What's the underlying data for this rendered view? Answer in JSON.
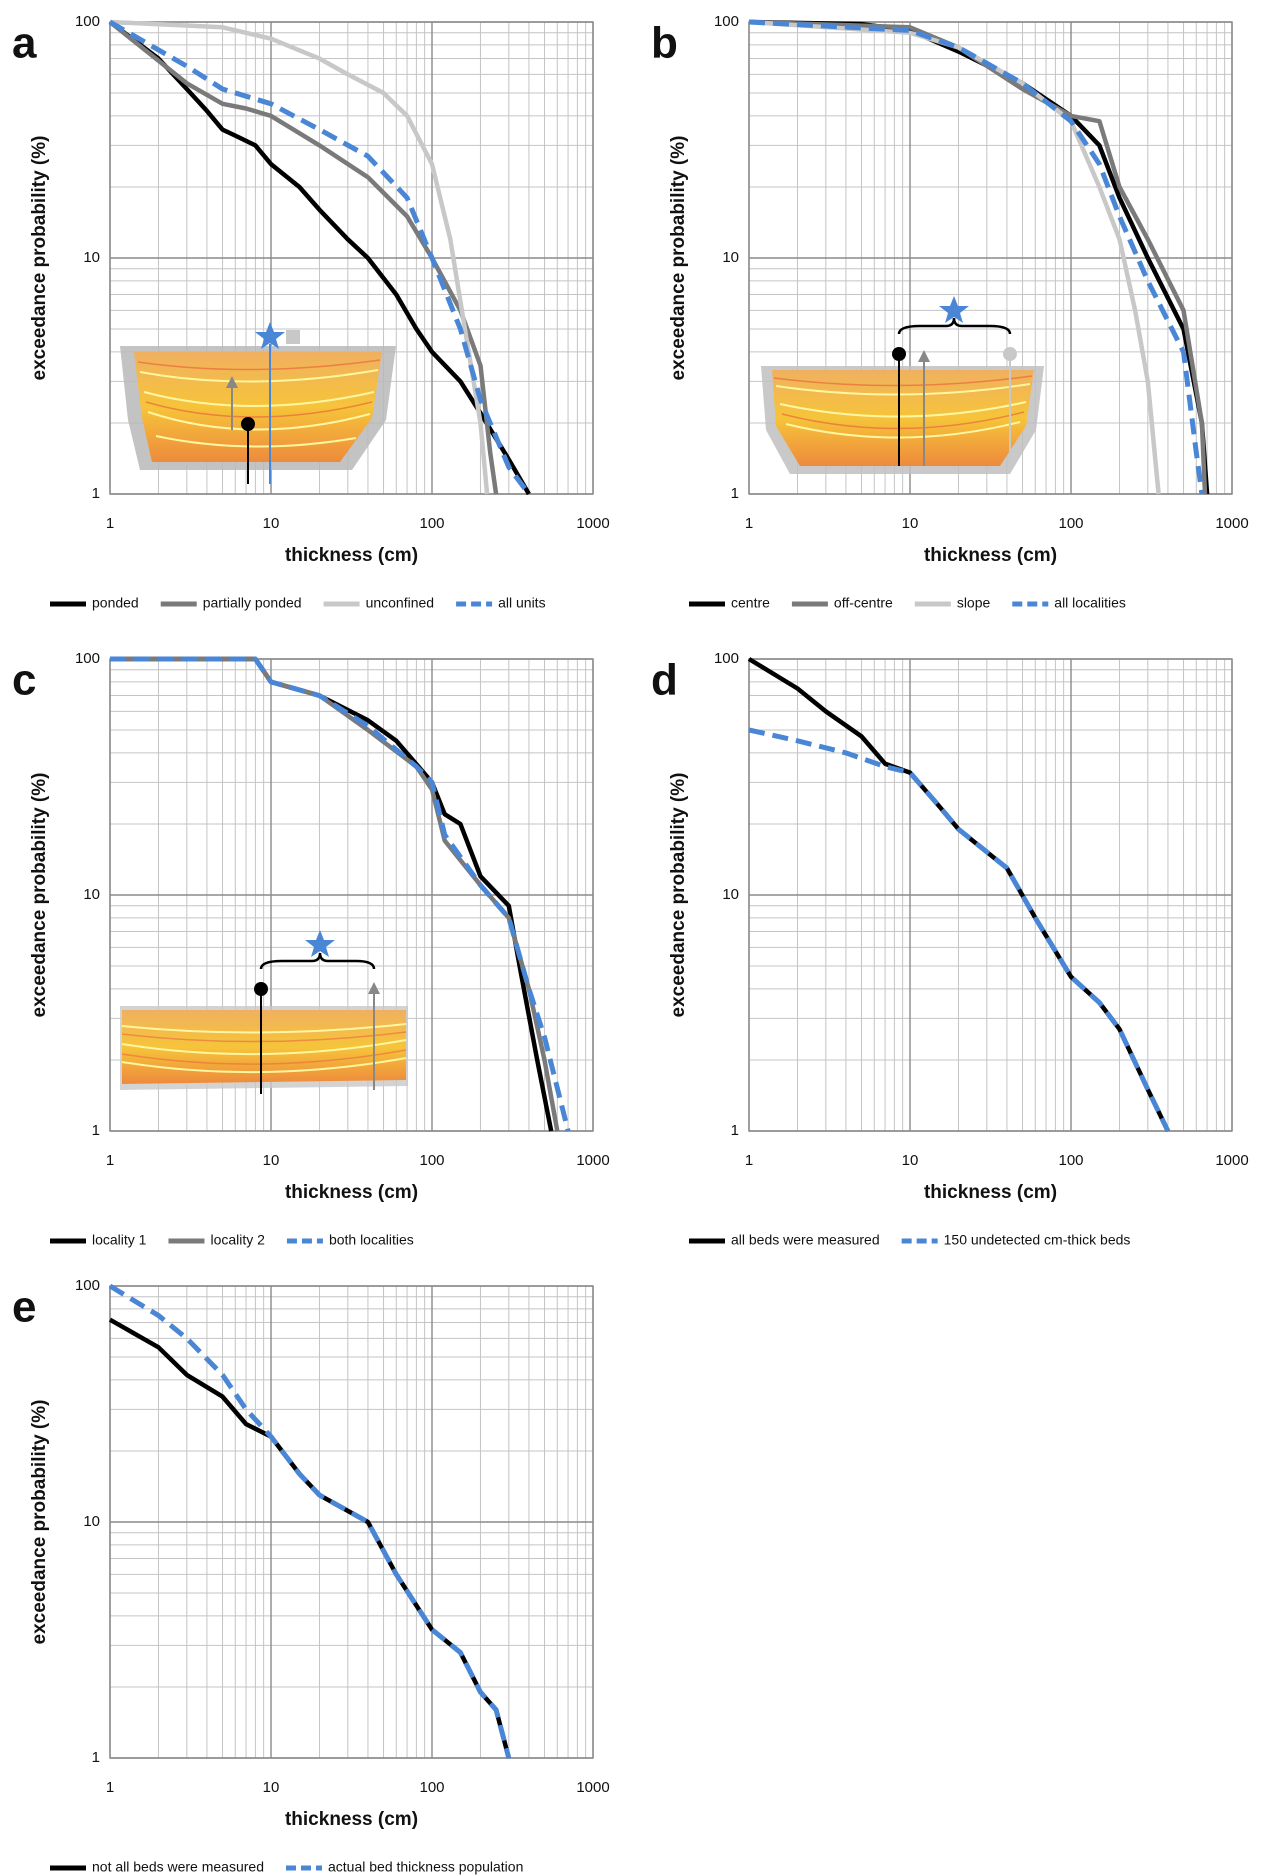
{
  "chart_data": [
    {
      "type": "line",
      "label": "a",
      "xlabel": "thickness (cm)",
      "ylabel": "exceedance probability (%)",
      "xlog": true,
      "ylog": true,
      "grid": true,
      "minor_grid": true,
      "xlim": [
        1,
        1000
      ],
      "ylim": [
        1,
        100
      ],
      "xticks": [
        1,
        10,
        100,
        1000
      ],
      "yticks": [
        1,
        10,
        100
      ],
      "series": [
        {
          "name": "ponded",
          "color": "#000000",
          "dashed": false,
          "x": [
            1,
            2,
            3,
            4,
            5,
            6,
            8,
            10,
            15,
            20,
            30,
            40,
            60,
            80,
            100,
            150,
            200,
            300,
            400
          ],
          "values": [
            100,
            70,
            52,
            42,
            35,
            33,
            30,
            25,
            20,
            16,
            12,
            10,
            7,
            5,
            4,
            3,
            2.2,
            1.4,
            1
          ]
        },
        {
          "name": "partially ponded",
          "color": "#7a7a7a",
          "dashed": false,
          "x": [
            1,
            3,
            5,
            7,
            10,
            20,
            40,
            70,
            100,
            150,
            200,
            230,
            250
          ],
          "values": [
            100,
            55,
            45,
            43,
            40,
            30,
            22,
            15,
            10,
            6,
            3.5,
            1.5,
            1
          ]
        },
        {
          "name": "unconfined",
          "color": "#c8c8c8",
          "dashed": false,
          "x": [
            1,
            5,
            10,
            20,
            30,
            50,
            70,
            100,
            130,
            160,
            200,
            220
          ],
          "values": [
            100,
            95,
            85,
            70,
            60,
            50,
            40,
            25,
            12,
            5,
            2,
            1
          ]
        },
        {
          "name": "all units",
          "color": "#4a86d6",
          "dashed": true,
          "x": [
            1,
            3,
            5,
            10,
            20,
            40,
            70,
            100,
            150,
            200,
            300,
            400
          ],
          "values": [
            100,
            65,
            52,
            45,
            35,
            27,
            18,
            10,
            5,
            2.5,
            1.3,
            1
          ]
        }
      ]
    },
    {
      "type": "line",
      "label": "b",
      "xlabel": "thickness (cm)",
      "ylabel": "exceedance probability (%)",
      "xlog": true,
      "ylog": true,
      "grid": true,
      "minor_grid": true,
      "xlim": [
        1,
        1000
      ],
      "ylim": [
        1,
        100
      ],
      "xticks": [
        1,
        10,
        100,
        1000
      ],
      "yticks": [
        1,
        10,
        100
      ],
      "series": [
        {
          "name": "centre",
          "color": "#000000",
          "dashed": false,
          "x": [
            1,
            5,
            10,
            20,
            50,
            100,
            150,
            200,
            300,
            500,
            650,
            700
          ],
          "values": [
            100,
            98,
            92,
            75,
            55,
            40,
            30,
            18,
            10,
            5,
            2,
            1
          ]
        },
        {
          "name": "off-centre",
          "color": "#7a7a7a",
          "dashed": false,
          "x": [
            1,
            10,
            20,
            50,
            100,
            150,
            200,
            300,
            500,
            650,
            680
          ],
          "values": [
            100,
            95,
            78,
            52,
            40,
            38,
            20,
            12,
            6,
            2,
            1
          ]
        },
        {
          "name": "slope",
          "color": "#c8c8c8",
          "dashed": false,
          "x": [
            1,
            10,
            20,
            50,
            100,
            150,
            200,
            250,
            300,
            350
          ],
          "values": [
            100,
            90,
            78,
            55,
            38,
            20,
            12,
            6,
            3,
            1
          ]
        },
        {
          "name": "all localities",
          "color": "#4a86d6",
          "dashed": true,
          "x": [
            1,
            10,
            20,
            50,
            100,
            150,
            200,
            300,
            500,
            600,
            650
          ],
          "values": [
            100,
            92,
            78,
            55,
            38,
            25,
            15,
            8,
            4,
            1.5,
            1
          ]
        }
      ]
    },
    {
      "type": "line",
      "label": "c",
      "xlabel": "thickness (cm)",
      "ylabel": "exceedance probability (%)",
      "xlog": true,
      "ylog": true,
      "grid": true,
      "minor_grid": true,
      "xlim": [
        1,
        1000
      ],
      "ylim": [
        1,
        100
      ],
      "xticks": [
        1,
        10,
        100,
        1000
      ],
      "yticks": [
        1,
        10,
        100
      ],
      "series": [
        {
          "name": "locality 1",
          "color": "#000000",
          "dashed": false,
          "x": [
            1,
            8,
            10,
            20,
            40,
            60,
            100,
            120,
            150,
            200,
            300,
            350,
            450,
            550
          ],
          "values": [
            100,
            100,
            80,
            70,
            55,
            45,
            30,
            22,
            20,
            12,
            9,
            5,
            2,
            1
          ]
        },
        {
          "name": "locality 2",
          "color": "#7a7a7a",
          "dashed": false,
          "x": [
            1,
            8,
            10,
            20,
            40,
            80,
            100,
            120,
            200,
            300,
            400,
            500,
            600
          ],
          "values": [
            100,
            100,
            80,
            70,
            50,
            35,
            28,
            17,
            11,
            8,
            4,
            2,
            1
          ]
        },
        {
          "name": "both localities",
          "color": "#4a86d6",
          "dashed": true,
          "x": [
            1,
            8,
            10,
            20,
            40,
            80,
            100,
            120,
            200,
            300,
            400,
            500,
            700
          ],
          "values": [
            100,
            100,
            80,
            70,
            52,
            35,
            30,
            18,
            11,
            8,
            4,
            2.5,
            1
          ]
        }
      ]
    },
    {
      "type": "line",
      "label": "d",
      "xlabel": "thickness (cm)",
      "ylabel": "exceedance probability (%)",
      "xlog": true,
      "ylog": true,
      "grid": true,
      "minor_grid": true,
      "xlim": [
        1,
        1000
      ],
      "ylim": [
        1,
        100
      ],
      "xticks": [
        1,
        10,
        100,
        1000
      ],
      "yticks": [
        1,
        10,
        100
      ],
      "series": [
        {
          "name": "all beds were measured",
          "color": "#000000",
          "dashed": false,
          "x": [
            1,
            2,
            3,
            5,
            7,
            10,
            15,
            20,
            40,
            60,
            100,
            150,
            200,
            300,
            400
          ],
          "values": [
            100,
            75,
            60,
            47,
            36,
            33,
            24,
            19,
            13,
            8,
            4.5,
            3.5,
            2.7,
            1.5,
            1
          ]
        },
        {
          "name": "150 undetected cm-thick beds",
          "color": "#4a86d6",
          "dashed": true,
          "x": [
            1,
            2,
            4,
            7,
            10,
            15,
            20,
            40,
            60,
            100,
            150,
            200,
            300,
            400
          ],
          "values": [
            50,
            45,
            40,
            35,
            33,
            24,
            19,
            13,
            8,
            4.5,
            3.5,
            2.7,
            1.5,
            1
          ]
        }
      ]
    },
    {
      "type": "line",
      "label": "e",
      "xlabel": "thickness (cm)",
      "ylabel": "exceedance probability (%)",
      "xlog": true,
      "ylog": true,
      "grid": true,
      "minor_grid": true,
      "xlim": [
        1,
        1000
      ],
      "ylim": [
        1,
        100
      ],
      "xticks": [
        1,
        10,
        100,
        1000
      ],
      "yticks": [
        1,
        10,
        100
      ],
      "series": [
        {
          "name": "not all beds were measured",
          "color": "#000000",
          "dashed": false,
          "x": [
            1,
            2,
            3,
            5,
            7,
            10,
            15,
            20,
            40,
            60,
            100,
            150,
            200,
            250,
            300
          ],
          "values": [
            72,
            55,
            42,
            34,
            26,
            23,
            16,
            13,
            10,
            6,
            3.5,
            2.8,
            1.9,
            1.6,
            1
          ]
        },
        {
          "name": "actual bed thickness population",
          "color": "#4a86d6",
          "dashed": true,
          "x": [
            1,
            2,
            3,
            5,
            7,
            10,
            15,
            20,
            40,
            60,
            100,
            150,
            200,
            250,
            300
          ],
          "values": [
            100,
            75,
            60,
            42,
            30,
            23,
            16,
            13,
            10,
            6,
            3.5,
            2.8,
            1.9,
            1.6,
            1
          ]
        }
      ]
    }
  ]
}
